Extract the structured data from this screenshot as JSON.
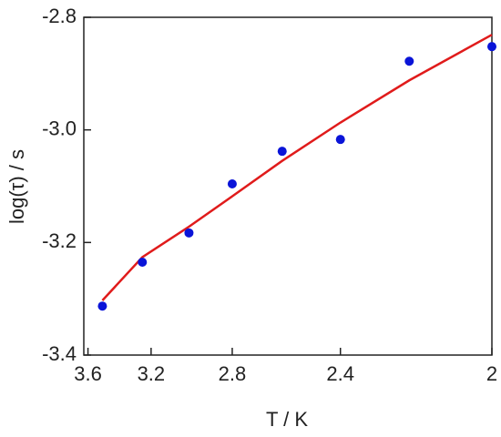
{
  "chart_data": {
    "type": "scatter",
    "x_label": "T / K",
    "y_label": "log(τ) / s",
    "x_scale": "reciprocal",
    "xlim": [
      3.63,
      2
    ],
    "xticks": [
      3.6,
      3.2,
      2.8,
      2.4,
      2
    ],
    "ylim": [
      -3.4,
      -2.8
    ],
    "yticks": [
      -3.4,
      -3.2,
      {
        "value": -3,
        "label": "-3.0"
      },
      -2.8
    ],
    "series": [
      {
        "kind": "points",
        "color": "#0a14d8",
        "x": [
          3.5,
          3.25,
          3.0,
          2.8,
          2.6,
          2.4,
          2.2,
          2.0
        ],
        "values": [
          -3.313,
          -3.235,
          -3.183,
          -3.096,
          -3.038,
          -3.017,
          -2.878,
          -2.852
        ]
      },
      {
        "kind": "line",
        "color": "#e01b1b",
        "x": [
          3.5,
          3.25,
          3.0,
          2.8,
          2.6,
          2.4,
          2.2,
          2.0
        ],
        "values": [
          -3.303,
          -3.226,
          -3.172,
          -3.118,
          -3.055,
          -2.987,
          -2.912,
          -2.831
        ]
      }
    ]
  }
}
